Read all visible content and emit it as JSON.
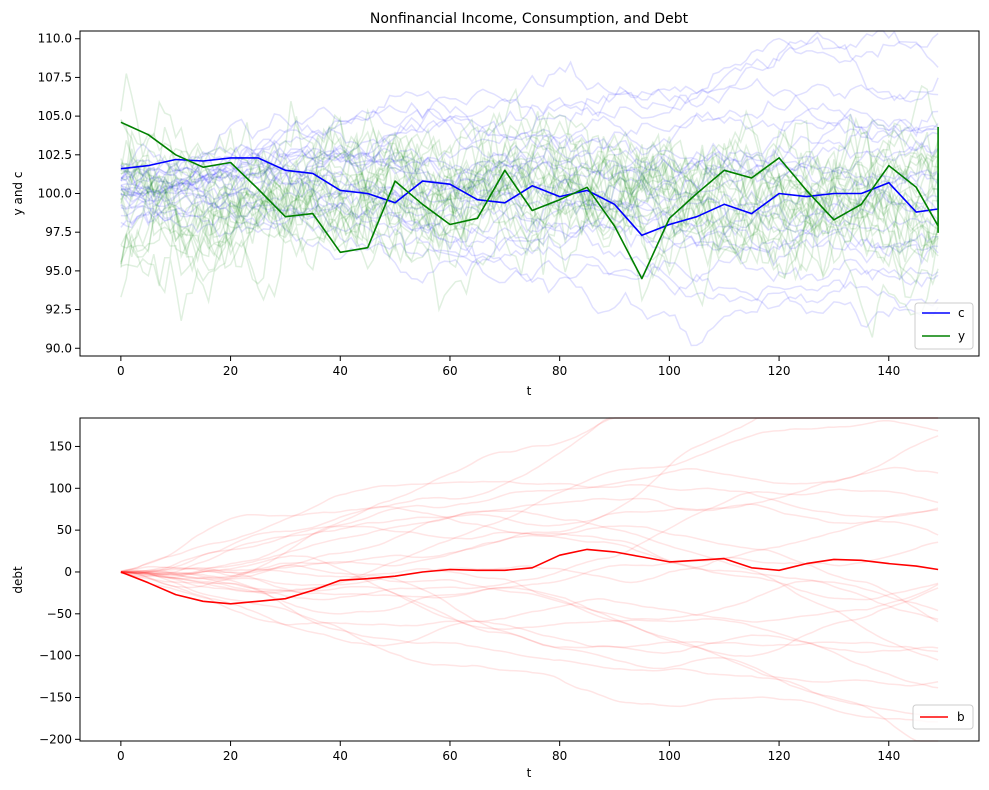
{
  "chart_data": [
    {
      "type": "line",
      "title": "Nonfinancial Income, Consumption, and Debt",
      "xlabel": "t",
      "ylabel": "y and c",
      "xlim": [
        -7.45,
        156.45
      ],
      "ylim": [
        89.5,
        110.5
      ],
      "xticks": [
        0,
        20,
        40,
        60,
        80,
        100,
        120,
        140
      ],
      "yticks": [
        90.0,
        92.5,
        95.0,
        97.5,
        100.0,
        102.5,
        105.0,
        107.5,
        110.0
      ],
      "ytick_labels": [
        "90.0",
        "92.5",
        "95.0",
        "97.5",
        "100.0",
        "102.5",
        "105.0",
        "107.5",
        "110.0"
      ],
      "grid": false,
      "legend": "bottom-right",
      "background_paths": {
        "c": {
          "color": "#0000ff",
          "opacity": 0.12,
          "count": 25
        },
        "y": {
          "color": "#008000",
          "opacity": 0.12,
          "count": 25
        }
      },
      "series": [
        {
          "name": "c",
          "color": "#0000ff",
          "x_step": 5,
          "values": [
            101.6,
            101.8,
            102.2,
            102.1,
            102.3,
            102.3,
            101.5,
            101.3,
            100.2,
            100.0,
            99.4,
            100.8,
            100.6,
            99.6,
            99.4,
            100.5,
            99.8,
            100.2,
            99.3,
            97.3,
            98.0,
            98.5,
            99.3,
            98.7,
            100.0,
            99.8,
            100.0,
            100.0,
            100.7,
            98.8,
            99.0,
            99.2,
            100.2,
            99.9,
            101.3
          ]
        },
        {
          "name": "y",
          "color": "#008000",
          "x_step": 5,
          "values": [
            104.6,
            103.8,
            102.5,
            101.7,
            102.0,
            100.3,
            98.5,
            98.7,
            96.2,
            96.5,
            100.8,
            99.3,
            98.0,
            98.4,
            101.5,
            98.9,
            99.6,
            100.4,
            97.9,
            94.5,
            98.4,
            100.0,
            101.5,
            101.0,
            102.3,
            100.2,
            98.3,
            99.3,
            101.8,
            100.4,
            97.9,
            97.5,
            100.4,
            100.9,
            104.3
          ]
        }
      ]
    },
    {
      "type": "line",
      "title": "",
      "xlabel": "t",
      "ylabel": "debt",
      "xlim": [
        -7.45,
        156.45
      ],
      "ylim": [
        -202,
        184
      ],
      "xticks": [
        0,
        20,
        40,
        60,
        80,
        100,
        120,
        140
      ],
      "yticks": [
        -200,
        -150,
        -100,
        -50,
        0,
        50,
        100,
        150
      ],
      "ytick_labels": [
        "−200",
        "−150",
        "−100",
        "−50",
        "0",
        "50",
        "100",
        "150"
      ],
      "grid": false,
      "legend": "bottom-right",
      "background_paths": {
        "b": {
          "color": "#ff0000",
          "opacity": 0.1,
          "count": 25
        }
      },
      "series": [
        {
          "name": "b",
          "color": "#ff0000",
          "x_step": 5,
          "values": [
            0,
            -13,
            -27,
            -35,
            -38,
            -35,
            -32,
            -22,
            -10,
            -8,
            -5,
            0,
            3,
            2,
            2,
            5,
            20,
            27,
            24,
            18,
            12,
            14,
            16,
            5,
            2,
            10,
            15,
            14,
            10,
            7,
            3
          ]
        }
      ]
    }
  ]
}
